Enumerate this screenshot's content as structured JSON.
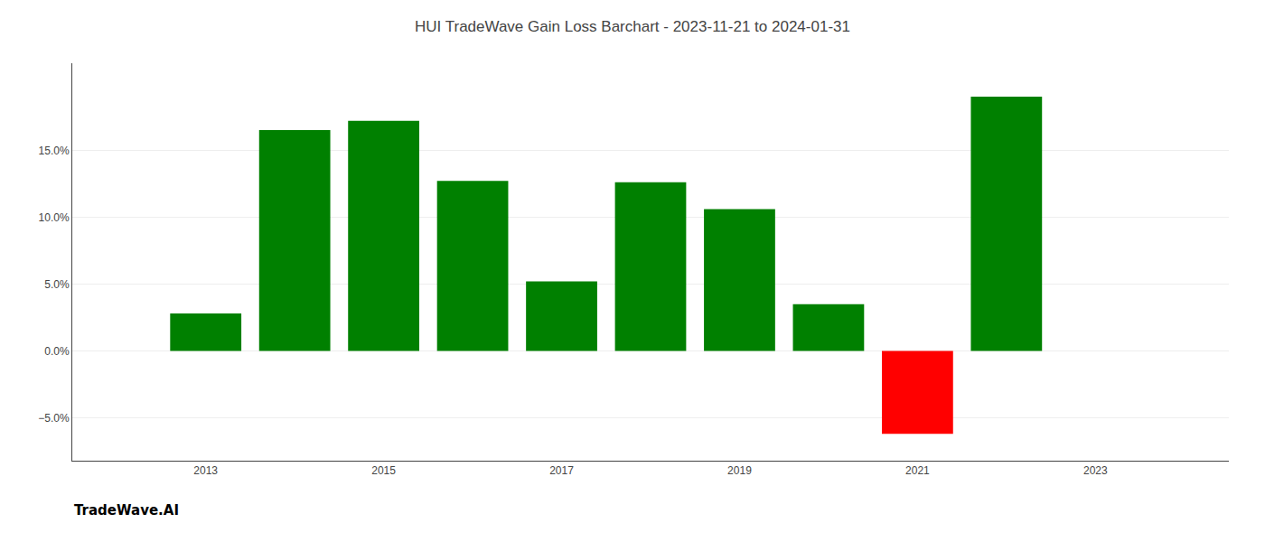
{
  "chart_data": {
    "type": "bar",
    "title": "HUI TradeWave Gain Loss Barchart - 2023-11-21 to 2024-01-31",
    "annotations": [
      "TradeWave.AI"
    ],
    "x": [
      2013,
      2014,
      2015,
      2016,
      2017,
      2018,
      2019,
      2020,
      2021,
      2022
    ],
    "values": [
      0.028,
      0.165,
      0.172,
      0.127,
      0.052,
      0.126,
      0.106,
      0.035,
      -0.062,
      0.19
    ],
    "colors": [
      "#008000",
      "#008000",
      "#008000",
      "#008000",
      "#008000",
      "#008000",
      "#008000",
      "#008000",
      "#ff0000",
      "#008000"
    ],
    "xlim": [
      2011.5,
      2024.5
    ],
    "xticks": [
      2013,
      2015,
      2017,
      2019,
      2021,
      2023
    ],
    "ylim": [
      -0.082,
      0.215
    ],
    "yticks": [
      {
        "value": -0.05,
        "label": "−5.0%"
      },
      {
        "value": 0.0,
        "label": "0.0%"
      },
      {
        "value": 0.05,
        "label": "5.0%"
      },
      {
        "value": 0.1,
        "label": "10.0%"
      },
      {
        "value": 0.15,
        "label": "15.0%"
      }
    ],
    "grid": true
  }
}
